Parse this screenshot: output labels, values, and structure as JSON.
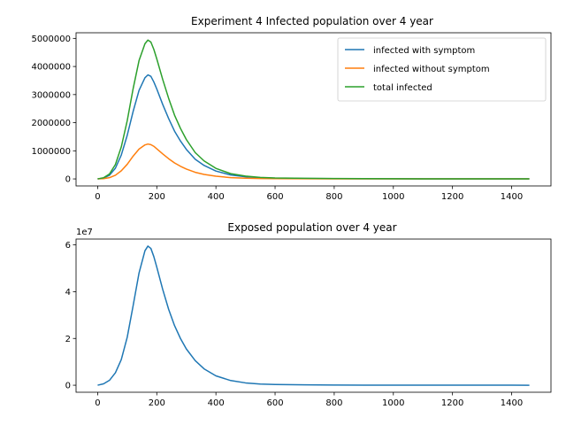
{
  "chart_data": [
    {
      "type": "line",
      "title": "Experiment 4 Infected population over 4 year",
      "xlabel": "",
      "ylabel": "",
      "xlim": [
        -73,
        1533
      ],
      "ylim": [
        -250000,
        5200000
      ],
      "xticks": [
        0,
        200,
        400,
        600,
        800,
        1000,
        1200,
        1400
      ],
      "xtick_labels": [
        "0",
        "200",
        "400",
        "600",
        "800",
        "1000",
        "1200",
        "1400"
      ],
      "yticks": [
        0,
        1000000,
        2000000,
        3000000,
        4000000,
        5000000
      ],
      "ytick_labels": [
        "0",
        "1000000",
        "2000000",
        "3000000",
        "4000000",
        "5000000"
      ],
      "offset_text": "",
      "grid": false,
      "legend": "top-right",
      "series": [
        {
          "name": "infected with symptom",
          "color": "#1f77b4",
          "x": [
            0,
            20,
            40,
            60,
            80,
            100,
            120,
            140,
            160,
            170,
            180,
            190,
            200,
            220,
            240,
            260,
            280,
            300,
            330,
            360,
            400,
            450,
            500,
            550,
            600,
            700,
            800,
            900,
            1000,
            1100,
            1200,
            1300,
            1400,
            1460
          ],
          "y": [
            0,
            30000,
            130000,
            380000,
            850000,
            1550000,
            2400000,
            3150000,
            3600000,
            3700000,
            3650000,
            3450000,
            3200000,
            2650000,
            2150000,
            1700000,
            1350000,
            1050000,
            700000,
            480000,
            280000,
            140000,
            75000,
            40000,
            25000,
            15000,
            10000,
            7000,
            5000,
            3000,
            2000,
            1500,
            1000,
            800
          ]
        },
        {
          "name": "infected without symptom",
          "color": "#ff7f0e",
          "x": [
            0,
            20,
            40,
            60,
            80,
            100,
            120,
            140,
            160,
            170,
            180,
            190,
            200,
            220,
            240,
            260,
            280,
            300,
            330,
            360,
            400,
            450,
            500,
            550,
            600,
            700,
            800,
            900,
            1000,
            1100,
            1200,
            1300,
            1400,
            1460
          ],
          "y": [
            0,
            10000,
            45000,
            130000,
            290000,
            520000,
            810000,
            1060000,
            1210000,
            1240000,
            1220000,
            1160000,
            1070000,
            890000,
            720000,
            570000,
            450000,
            350000,
            235000,
            160000,
            95000,
            47000,
            25000,
            13000,
            8000,
            5000,
            3300,
            2300,
            1600,
            1000,
            700,
            500,
            300,
            250
          ]
        },
        {
          "name": "total infected",
          "color": "#2ca02c",
          "x": [
            0,
            20,
            40,
            60,
            80,
            100,
            120,
            140,
            160,
            170,
            180,
            190,
            200,
            220,
            240,
            260,
            280,
            300,
            330,
            360,
            400,
            450,
            500,
            550,
            600,
            700,
            800,
            900,
            1000,
            1100,
            1200,
            1300,
            1400,
            1460
          ],
          "y": [
            0,
            40000,
            175000,
            510000,
            1140000,
            2070000,
            3210000,
            4210000,
            4810000,
            4940000,
            4870000,
            4610000,
            4270000,
            3540000,
            2870000,
            2270000,
            1800000,
            1400000,
            935000,
            640000,
            375000,
            187000,
            100000,
            53000,
            33000,
            20000,
            13300,
            9300,
            6600,
            4000,
            2700,
            2000,
            1300,
            1050
          ]
        }
      ]
    },
    {
      "type": "line",
      "title": "Exposed population over 4 year",
      "xlabel": "",
      "ylabel": "",
      "xlim": [
        -73,
        1533
      ],
      "ylim": [
        -3000000,
        62500000
      ],
      "xticks": [
        0,
        200,
        400,
        600,
        800,
        1000,
        1200,
        1400
      ],
      "xtick_labels": [
        "0",
        "200",
        "400",
        "600",
        "800",
        "1000",
        "1200",
        "1400"
      ],
      "yticks": [
        0,
        20000000,
        40000000,
        60000000
      ],
      "ytick_labels": [
        "0",
        "2",
        "4",
        "6"
      ],
      "offset_text": "1e7",
      "grid": false,
      "legend": "none",
      "series": [
        {
          "color": "#1f77b4",
          "x": [
            0,
            20,
            40,
            60,
            80,
            100,
            120,
            140,
            160,
            170,
            180,
            190,
            200,
            220,
            240,
            260,
            280,
            300,
            330,
            360,
            400,
            450,
            500,
            550,
            600,
            700,
            800,
            900,
            1000,
            1100,
            1200,
            1300,
            1400,
            1460
          ],
          "y": [
            0,
            600000,
            2100000,
            5300000,
            11000000,
            20500000,
            34000000,
            48000000,
            57500000,
            59500000,
            58500000,
            55000000,
            50500000,
            41000000,
            32500000,
            25500000,
            20000000,
            15500000,
            10500000,
            7000000,
            4000000,
            2000000,
            1000000,
            500000,
            300000,
            150000,
            80000,
            50000,
            30000,
            20000,
            12000,
            8000,
            5000,
            4000
          ]
        }
      ]
    }
  ]
}
